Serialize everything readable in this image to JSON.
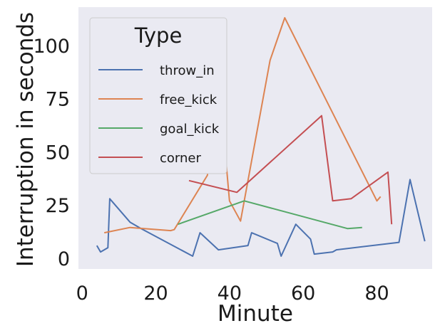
{
  "chart_data": {
    "type": "line",
    "xlabel": "Minute",
    "ylabel": "Interruption in seconds",
    "xlim": [
      -1,
      95
    ],
    "ylim": [
      -5,
      118
    ],
    "xticks": [
      0,
      20,
      40,
      60,
      80
    ],
    "yticks": [
      0,
      25,
      50,
      75,
      100
    ],
    "grid": false,
    "background": "#eaeaf2",
    "legend": {
      "title": "Type",
      "placement": "top-left"
    },
    "series": [
      {
        "name": "throw_in",
        "color": "#4c72b0",
        "x": [
          4,
          5,
          7,
          7.5,
          13,
          16,
          30,
          32,
          37,
          45,
          46,
          53,
          54,
          58,
          62,
          63,
          68,
          69,
          86,
          89,
          93
        ],
        "y": [
          6,
          3,
          5,
          28,
          17,
          14,
          1,
          12,
          4,
          6,
          12,
          7,
          1,
          16,
          9,
          2,
          3,
          4,
          7.5,
          37,
          8
        ]
      },
      {
        "name": "free_kick",
        "color": "#dd8452",
        "x": [
          6,
          13,
          24,
          25,
          34,
          37.5,
          40,
          43,
          51,
          55,
          80,
          81
        ],
        "y": [
          12,
          14.5,
          13,
          13.5,
          39,
          76,
          27,
          17.5,
          93,
          113,
          27,
          29
        ]
      },
      {
        "name": "goal_kick",
        "color": "#55a868",
        "x": [
          26,
          44,
          72,
          76
        ],
        "y": [
          16,
          27,
          14,
          14.5
        ]
      },
      {
        "name": "corner",
        "color": "#c44e52",
        "x": [
          29,
          42,
          65,
          68,
          73,
          83,
          84
        ],
        "y": [
          36.5,
          31,
          67,
          27,
          28,
          40.5,
          16
        ]
      }
    ]
  }
}
